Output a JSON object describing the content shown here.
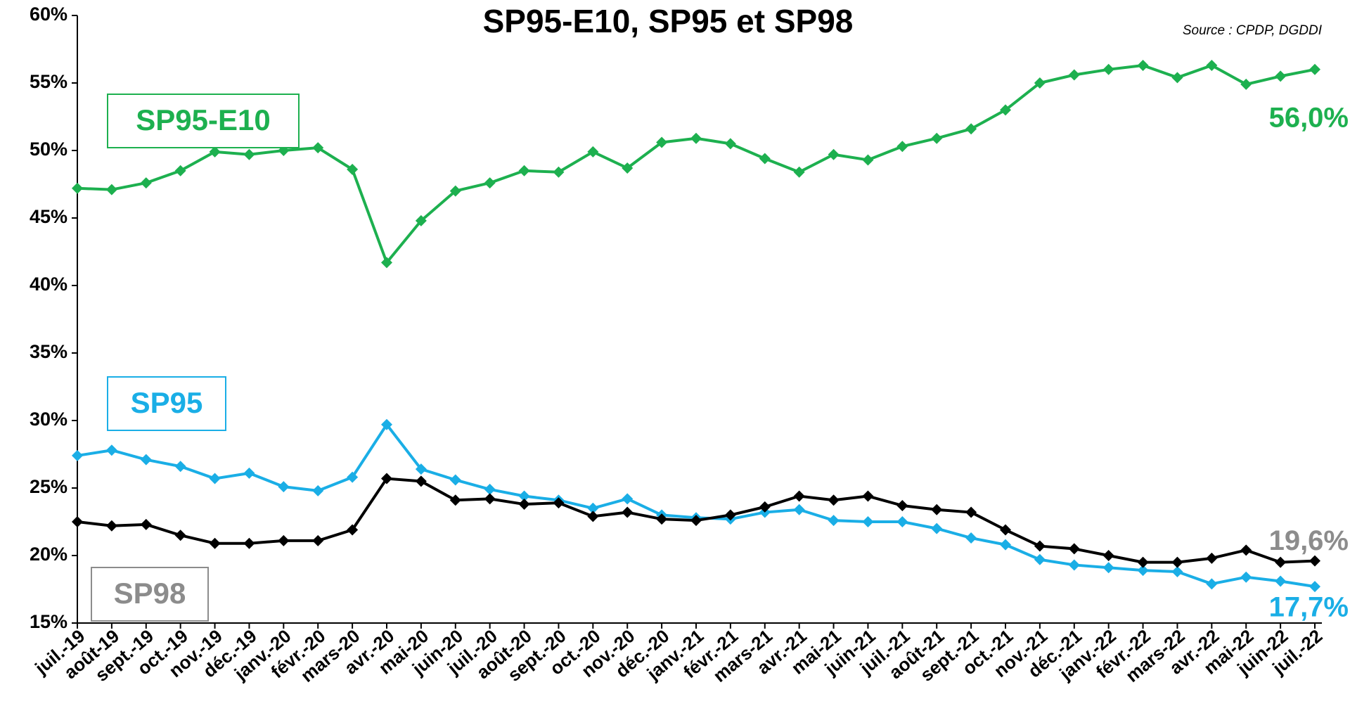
{
  "chart_data": {
    "type": "line",
    "title": "SP95-E10, SP95 et SP98",
    "source": "Source : CPDP, DGDDI",
    "categories": [
      "juil.-19",
      "août-19",
      "sept.-19",
      "oct.-19",
      "nov.-19",
      "déc.-19",
      "janv.-20",
      "févr.-20",
      "mars-20",
      "avr.-20",
      "mai-20",
      "juin-20",
      "juil.-20",
      "août-20",
      "sept.-20",
      "oct.-20",
      "nov.-20",
      "déc.-20",
      "janv.-21",
      "févr.-21",
      "mars-21",
      "avr.-21",
      "mai-21",
      "juin-21",
      "juil.-21",
      "août-21",
      "sept.-21",
      "oct.-21",
      "nov.-21",
      "déc.-21",
      "janv.-22",
      "févr.-22",
      "mars-22",
      "avr.-22",
      "mai-22",
      "juin-22",
      "juil.-22"
    ],
    "ylim": [
      15,
      60
    ],
    "yticks": [
      {
        "value": 15,
        "label": "15%"
      },
      {
        "value": 20,
        "label": "20%"
      },
      {
        "value": 25,
        "label": "25%"
      },
      {
        "value": 30,
        "label": "30%"
      },
      {
        "value": 35,
        "label": "35%"
      },
      {
        "value": 40,
        "label": "40%"
      },
      {
        "value": 45,
        "label": "45%"
      },
      {
        "value": 50,
        "label": "50%"
      },
      {
        "value": 55,
        "label": "55%"
      },
      {
        "value": 60,
        "label": "60%"
      }
    ],
    "grid": false,
    "series": [
      {
        "name": "SP95-E10",
        "color": "#1db04f",
        "label_color": "#1db04f",
        "values": [
          47.2,
          47.1,
          47.6,
          48.5,
          49.9,
          49.7,
          50.0,
          50.2,
          48.6,
          41.7,
          44.8,
          47.0,
          47.6,
          48.5,
          48.4,
          49.9,
          48.7,
          50.6,
          50.9,
          50.5,
          49.4,
          48.4,
          49.7,
          49.3,
          50.3,
          50.9,
          51.6,
          53.0,
          55.0,
          55.6,
          56.0,
          56.3,
          55.4,
          56.3,
          54.9,
          55.5,
          56.0
        ],
        "value_labels": [
          null,
          null,
          null,
          null,
          null,
          null,
          null,
          null,
          null,
          null,
          null,
          null,
          null,
          null,
          null,
          null,
          null,
          null,
          null,
          null,
          null,
          null,
          null,
          null,
          null,
          null,
          null,
          null,
          null,
          null,
          null,
          null,
          null,
          null,
          null,
          null,
          "56,0%"
        ]
      },
      {
        "name": "SP95",
        "color": "#1aaee6",
        "label_color": "#1aaee6",
        "values": [
          27.4,
          27.8,
          27.1,
          26.6,
          25.7,
          26.1,
          25.1,
          24.8,
          25.8,
          29.7,
          26.4,
          25.6,
          24.9,
          24.4,
          24.1,
          23.5,
          24.2,
          23.0,
          22.8,
          22.7,
          23.2,
          23.4,
          22.6,
          22.5,
          22.5,
          22.0,
          21.3,
          20.8,
          19.7,
          19.3,
          19.1,
          18.9,
          18.8,
          17.9,
          18.4,
          18.1,
          17.7
        ],
        "value_labels": [
          null,
          null,
          null,
          null,
          null,
          null,
          null,
          null,
          null,
          null,
          null,
          null,
          null,
          null,
          null,
          null,
          null,
          null,
          null,
          null,
          null,
          null,
          null,
          null,
          null,
          null,
          null,
          null,
          null,
          null,
          null,
          null,
          null,
          null,
          null,
          null,
          "17,7%"
        ]
      },
      {
        "name": "SP98",
        "color": "#000000",
        "label_color": "#8c8c8c",
        "values": [
          22.5,
          22.2,
          22.3,
          21.5,
          20.9,
          20.9,
          21.1,
          21.1,
          21.9,
          25.7,
          25.5,
          24.1,
          24.2,
          23.8,
          23.9,
          22.9,
          23.2,
          22.7,
          22.6,
          23.0,
          23.6,
          24.4,
          24.1,
          24.4,
          23.7,
          23.4,
          23.2,
          21.9,
          20.7,
          20.5,
          20.0,
          19.5,
          19.5,
          19.8,
          20.4,
          19.5,
          19.6
        ],
        "value_labels": [
          null,
          null,
          null,
          null,
          null,
          null,
          null,
          null,
          null,
          null,
          null,
          null,
          null,
          null,
          null,
          null,
          null,
          null,
          null,
          null,
          null,
          null,
          null,
          null,
          null,
          null,
          null,
          null,
          null,
          null,
          null,
          null,
          null,
          null,
          null,
          null,
          "19,6%"
        ]
      }
    ]
  }
}
